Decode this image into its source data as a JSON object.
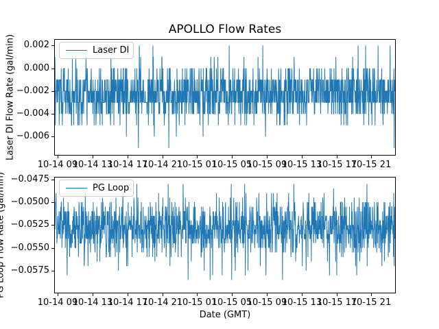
{
  "figure": {
    "title": "APOLLO Flow Rates",
    "xlabel": "Date (GMT)",
    "background": "#ffffff",
    "spine_color": "#000000",
    "legend_border_color": "#cccccc"
  },
  "chart_data": [
    {
      "type": "line",
      "series_name": "Laser DI",
      "title": "APOLLO Flow Rates",
      "ylabel": "Laser DI Flow Rate (gal/min)",
      "xlabel": "",
      "line_color": "#1f77b4",
      "grid": false,
      "legend_position": "upper left",
      "ylim": [
        -0.0076,
        0.0025
      ],
      "yticks": [
        0.002,
        0.0,
        -0.002,
        -0.004,
        -0.006
      ],
      "ytick_labels": [
        "0.002",
        "0.000",
        "−0.002",
        "−0.004",
        "−0.006"
      ],
      "xtick_labels": [
        "10-14 09",
        "10-14 13",
        "10-14 17",
        "10-14 21",
        "10-15 01",
        "10-15 05",
        "10-15 09",
        "10-15 13",
        "10-15 17",
        "10-15 21"
      ],
      "x_axis": {
        "first_tick_frac": 0.0085,
        "tick_step_frac": 0.1024
      },
      "x_range_note": "Oct 14 ~08:40 GMT to Oct 15 ~23:45 GMT, 1-minute samples",
      "n_points": 1500,
      "seed": 7,
      "quantization_step": 0.001,
      "levels": [
        0.002,
        0.001,
        0.0,
        -0.001,
        -0.002,
        -0.003,
        -0.004,
        -0.005,
        -0.006,
        -0.007
      ],
      "weights": [
        0.0015,
        0.012,
        0.08,
        0.2,
        0.27,
        0.27,
        0.13,
        0.032,
        0.003,
        0.0015
      ],
      "outliers": [
        {
          "frac": 0.248,
          "value": 0.002
        },
        {
          "frac": 0.611,
          "value": 0.002
        },
        {
          "frac": 0.985,
          "value": 0.002
        },
        {
          "frac": 0.21,
          "value": -0.006
        },
        {
          "frac": 0.292,
          "value": -0.006
        },
        {
          "frac": 0.335,
          "value": -0.007
        },
        {
          "frac": 0.357,
          "value": -0.006
        }
      ]
    },
    {
      "type": "line",
      "series_name": "PG Loop",
      "title": "",
      "ylabel": "PG Loop Flow Rate (gal/min)",
      "xlabel": "Date (GMT)",
      "line_color": "#1f77b4",
      "grid": false,
      "legend_position": "upper left",
      "ylim": [
        -0.0599,
        -0.0473
      ],
      "yticks": [
        -0.0475,
        -0.05,
        -0.0525,
        -0.055,
        -0.0575
      ],
      "ytick_labels": [
        "−0.0475",
        "−0.0500",
        "−0.0525",
        "−0.0550",
        "−0.0575"
      ],
      "xtick_labels": [
        "10-14 09",
        "10-14 13",
        "10-14 17",
        "10-14 21",
        "10-15 01",
        "10-15 05",
        "10-15 09",
        "10-15 13",
        "10-15 17",
        "10-15 21"
      ],
      "x_axis": {
        "first_tick_frac": 0.0085,
        "tick_step_frac": 0.1024
      },
      "x_range_note": "Oct 14 ~08:40 GMT to Oct 15 ~23:45 GMT, 1-minute samples",
      "n_points": 1500,
      "seed": 13,
      "quantization_step": 0.0005,
      "levels": [
        -0.048,
        -0.0485,
        -0.049,
        -0.0495,
        -0.05,
        -0.0505,
        -0.051,
        -0.0515,
        -0.052,
        -0.0525,
        -0.053,
        -0.0535,
        -0.054,
        -0.0545,
        -0.055,
        -0.0555,
        -0.056,
        -0.0565,
        -0.057,
        -0.0575,
        -0.058,
        -0.0585,
        -0.059
      ],
      "weights": [
        0.0015,
        0.003,
        0.008,
        0.015,
        0.035,
        0.04,
        0.05,
        0.065,
        0.105,
        0.135,
        0.14,
        0.125,
        0.105,
        0.065,
        0.04,
        0.025,
        0.015,
        0.01,
        0.007,
        0.005,
        0.003,
        0.002,
        0.0005
      ],
      "outliers": [
        {
          "frac": 0.333,
          "value": -0.048
        },
        {
          "frac": 0.377,
          "value": -0.048
        },
        {
          "frac": 0.558,
          "value": -0.048
        },
        {
          "frac": 0.917,
          "value": -0.048
        },
        {
          "frac": 0.456,
          "value": -0.0585
        },
        {
          "frac": 0.52,
          "value": -0.0585
        },
        {
          "frac": 0.887,
          "value": -0.058
        }
      ]
    }
  ]
}
